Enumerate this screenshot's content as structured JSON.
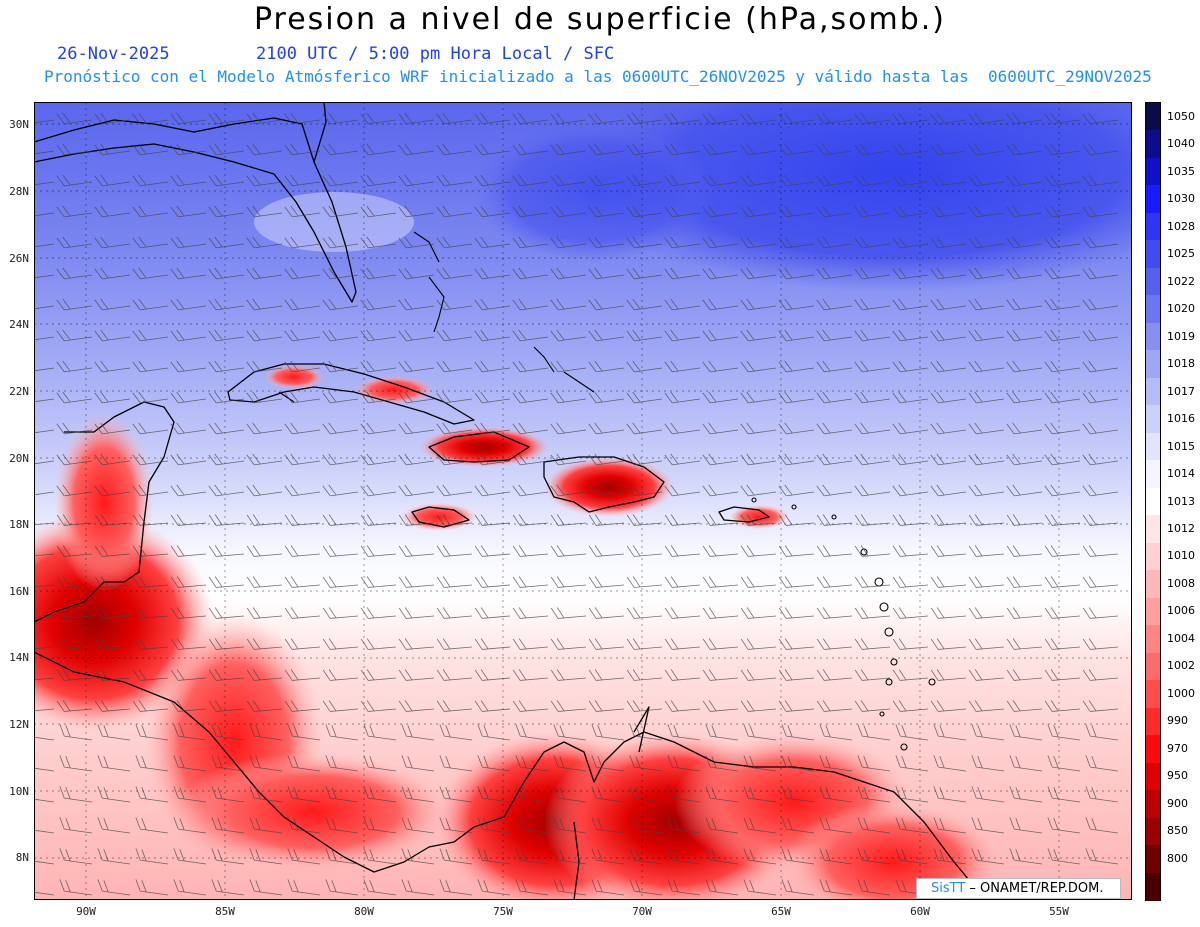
{
  "header": {
    "title": "Presion a nivel de superficie (hPa,somb.)",
    "date": "26-Nov-2025",
    "time": "2100 UTC / 5:00 pm Hora Local / SFC",
    "forecast": "Pronóstico con el Modelo Atmósferico WRF inicializado a las 0600UTC_26NOV2025 y válido hasta las  0600UTC_29NOV2025"
  },
  "map": {
    "lat_labels": [
      "30N",
      "28N",
      "26N",
      "24N",
      "22N",
      "20N",
      "18N",
      "16N",
      "14N",
      "12N",
      "10N",
      "8N"
    ],
    "lon_labels": [
      "90W",
      "85W",
      "80W",
      "75W",
      "70W",
      "65W",
      "60W",
      "55W"
    ]
  },
  "colorbar": {
    "levels": [
      {
        "label": "1050",
        "color": "#0b0b4a"
      },
      {
        "label": "1040",
        "color": "#0d0d8c"
      },
      {
        "label": "1035",
        "color": "#1010c8"
      },
      {
        "label": "1030",
        "color": "#1a1aff"
      },
      {
        "label": "1028",
        "color": "#2d36f5"
      },
      {
        "label": "1025",
        "color": "#3f4cf0"
      },
      {
        "label": "1022",
        "color": "#5560ee"
      },
      {
        "label": "1020",
        "color": "#6b76f0"
      },
      {
        "label": "1019",
        "color": "#8590f2"
      },
      {
        "label": "1018",
        "color": "#9ea7f5"
      },
      {
        "label": "1017",
        "color": "#b6bcf7"
      },
      {
        "label": "1016",
        "color": "#ccd1fa"
      },
      {
        "label": "1015",
        "color": "#e1e4fc"
      },
      {
        "label": "1014",
        "color": "#f4f5ff"
      },
      {
        "label": "1013",
        "color": "#ffffff"
      },
      {
        "label": "1012",
        "color": "#ffe6e6"
      },
      {
        "label": "1010",
        "color": "#ffd0d0"
      },
      {
        "label": "1008",
        "color": "#ffb8b8"
      },
      {
        "label": "1006",
        "color": "#ff9f9f"
      },
      {
        "label": "1004",
        "color": "#ff8585"
      },
      {
        "label": "1002",
        "color": "#ff6a6a"
      },
      {
        "label": "1000",
        "color": "#ff4c4c"
      },
      {
        "label": "990",
        "color": "#ff2a2a"
      },
      {
        "label": "970",
        "color": "#ff0a0a"
      },
      {
        "label": "950",
        "color": "#e00000"
      },
      {
        "label": "900",
        "color": "#c00000"
      },
      {
        "label": "850",
        "color": "#9a0000"
      },
      {
        "label": "800",
        "color": "#700000"
      },
      {
        "label": "",
        "color": "#4a0000"
      }
    ]
  },
  "credit": {
    "brand": "SisTT",
    "text": " – ONAMET/REP.DOM."
  }
}
